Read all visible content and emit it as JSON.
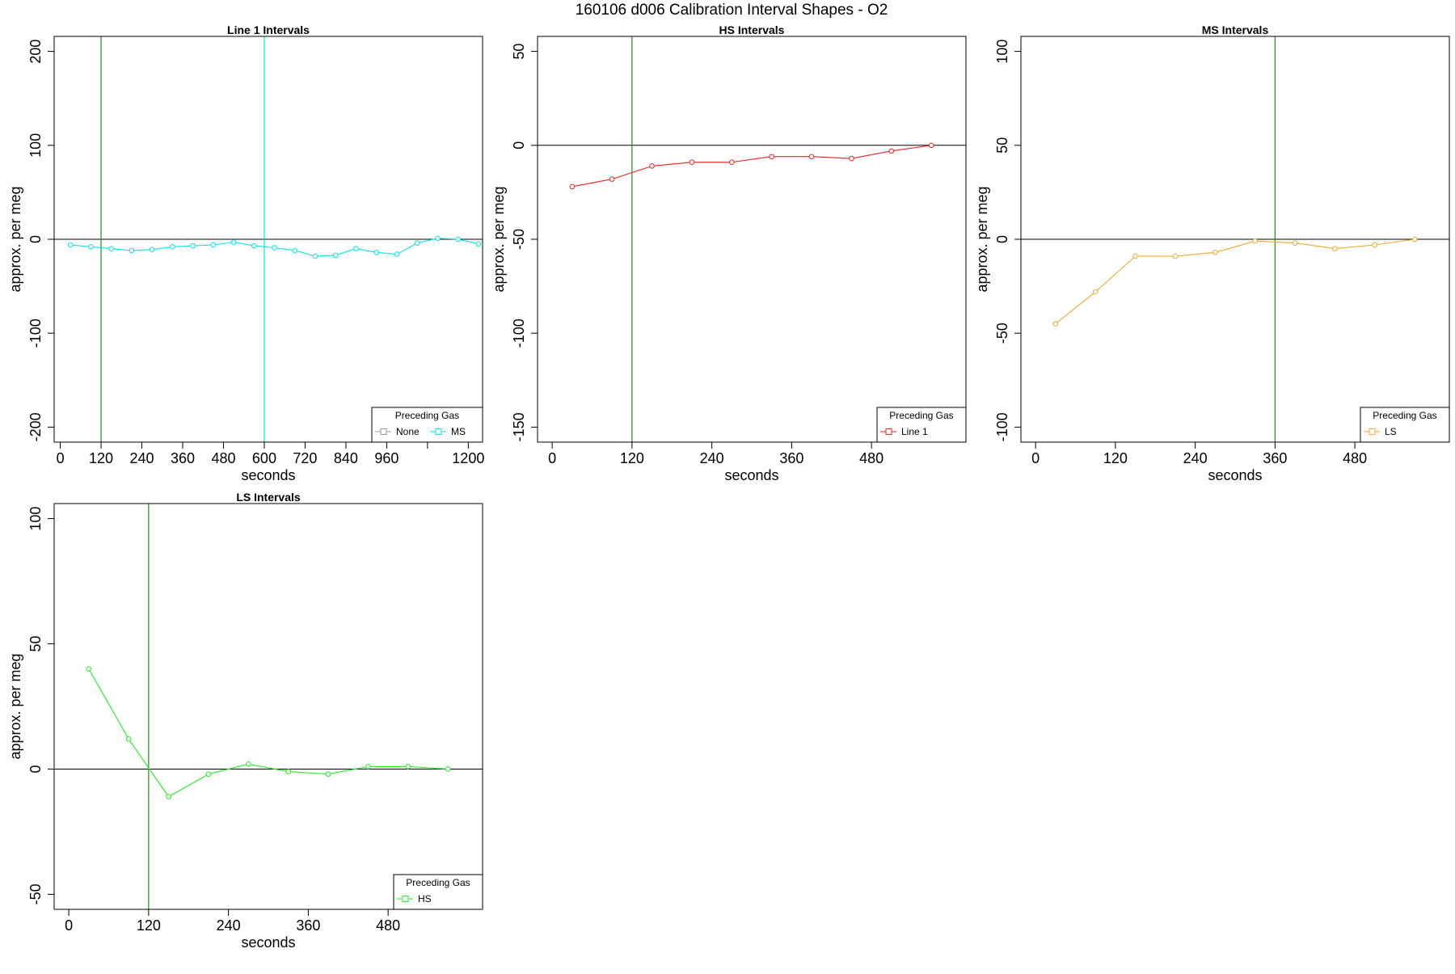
{
  "figure_title": "160106   d006   Calibration Interval Shapes - O2",
  "chart_data": [
    {
      "type": "line",
      "title": "Line 1 Intervals",
      "xlabel": "seconds",
      "ylabel": "approx. per meg",
      "xlim": [
        -18,
        1242
      ],
      "ylim": [
        -216,
        216
      ],
      "xticks": [
        0,
        120,
        240,
        360,
        480,
        600,
        720,
        840,
        960,
        1200
      ],
      "xtick_labels": [
        "0",
        "120",
        "240",
        "360",
        "480",
        "600",
        "720",
        "840",
        "960",
        "1200"
      ],
      "extra_xticks": [
        1080
      ],
      "yticks": [
        -200,
        -100,
        0,
        100,
        200
      ],
      "ytick_labels": [
        "-200",
        "-100",
        "0",
        "100",
        "200"
      ],
      "hlines": [
        {
          "y": 0,
          "color": "#000000"
        }
      ],
      "vlines": [
        {
          "x": 120,
          "color": "#1a8f1a"
        },
        {
          "x": 600,
          "color": "#00e5ee"
        }
      ],
      "series": [
        {
          "name": "MS",
          "color": "#00e5ee",
          "x": [
            30,
            90,
            150,
            210,
            270,
            330,
            390,
            450,
            510,
            570,
            630,
            690,
            750,
            810,
            870,
            930,
            990,
            1050,
            1110,
            1170,
            1230
          ],
          "values": [
            -6,
            -8,
            -10,
            -12,
            -11,
            -8,
            -7,
            -6,
            -3,
            -7,
            -9,
            -12,
            -18,
            -17,
            -10,
            -14,
            -16,
            -4,
            1,
            0,
            -5
          ]
        }
      ],
      "legend": {
        "title": "Preceding Gas",
        "position": "bottom-right",
        "entries": [
          {
            "label": "None",
            "color": "#999999"
          },
          {
            "label": "MS",
            "color": "#00e5ee"
          }
        ]
      }
    },
    {
      "type": "line",
      "title": "HS Intervals",
      "xlabel": "seconds",
      "ylabel": "approx. per meg",
      "xlim": [
        -22,
        622
      ],
      "ylim": [
        -158,
        58
      ],
      "xticks": [
        0,
        120,
        240,
        360,
        480
      ],
      "xtick_labels": [
        "0",
        "120",
        "240",
        "360",
        "480"
      ],
      "extra_xticks": [],
      "yticks": [
        -150,
        -100,
        -50,
        0,
        50
      ],
      "ytick_labels": [
        "-150",
        "-100",
        "-50",
        "0",
        "50"
      ],
      "hlines": [
        {
          "y": 0,
          "color": "#000000"
        }
      ],
      "vlines": [
        {
          "x": 120,
          "color": "#1a8f1a"
        }
      ],
      "series": [
        {
          "name": "Line 1",
          "color": "#ee2222",
          "x": [
            30,
            90,
            150,
            210,
            270,
            330,
            390,
            450,
            510,
            570
          ],
          "values": [
            -22,
            -18,
            -11,
            -9,
            -9,
            -6,
            -6,
            -7,
            -3,
            0
          ]
        }
      ],
      "legend": {
        "title": "Preceding Gas",
        "position": "bottom-right",
        "entries": [
          {
            "label": "Line 1",
            "color": "#ee2222"
          }
        ]
      }
    },
    {
      "type": "line",
      "title": "MS Intervals",
      "xlabel": "seconds",
      "ylabel": "approx. per meg",
      "xlim": [
        -22,
        622
      ],
      "ylim": [
        -108,
        108
      ],
      "xticks": [
        0,
        120,
        240,
        360,
        480
      ],
      "xtick_labels": [
        "0",
        "120",
        "240",
        "360",
        "480"
      ],
      "extra_xticks": [],
      "yticks": [
        -100,
        -50,
        0,
        50,
        100
      ],
      "ytick_labels": [
        "-100",
        "-50",
        "0",
        "50",
        "100"
      ],
      "hlines": [
        {
          "y": 0,
          "color": "#000000"
        }
      ],
      "vlines": [
        {
          "x": 360,
          "color": "#1a8f1a"
        }
      ],
      "series": [
        {
          "name": "LS",
          "color": "#f0a830",
          "x": [
            30,
            90,
            150,
            210,
            270,
            330,
            390,
            450,
            510,
            570
          ],
          "values": [
            -45,
            -28,
            -9,
            -9,
            -7,
            -1,
            -2,
            -5,
            -3,
            0
          ]
        }
      ],
      "legend": {
        "title": "Preceding Gas",
        "position": "bottom-right",
        "entries": [
          {
            "label": "LS",
            "color": "#f0a830"
          }
        ]
      }
    },
    {
      "type": "line",
      "title": "LS Intervals",
      "xlabel": "seconds",
      "ylabel": "approx. per meg",
      "xlim": [
        -22,
        622
      ],
      "ylim": [
        -56,
        106
      ],
      "xticks": [
        0,
        120,
        240,
        360,
        480
      ],
      "xtick_labels": [
        "0",
        "120",
        "240",
        "360",
        "480"
      ],
      "extra_xticks": [],
      "yticks": [
        -50,
        0,
        50,
        100
      ],
      "ytick_labels": [
        "-50",
        "0",
        "50",
        "100"
      ],
      "hlines": [
        {
          "y": 0,
          "color": "#000000"
        }
      ],
      "vlines": [
        {
          "x": 120,
          "color": "#1a8f1a"
        }
      ],
      "series": [
        {
          "name": "HS",
          "color": "#22ee22",
          "x": [
            30,
            90,
            150,
            210,
            270,
            330,
            390,
            450,
            510,
            570
          ],
          "values": [
            40,
            12,
            -11,
            -2,
            2,
            -1,
            -2,
            1,
            1,
            0
          ]
        }
      ],
      "legend": {
        "title": "Preceding Gas",
        "position": "bottom-right",
        "entries": [
          {
            "label": "HS",
            "color": "#22ee22"
          }
        ]
      }
    }
  ]
}
